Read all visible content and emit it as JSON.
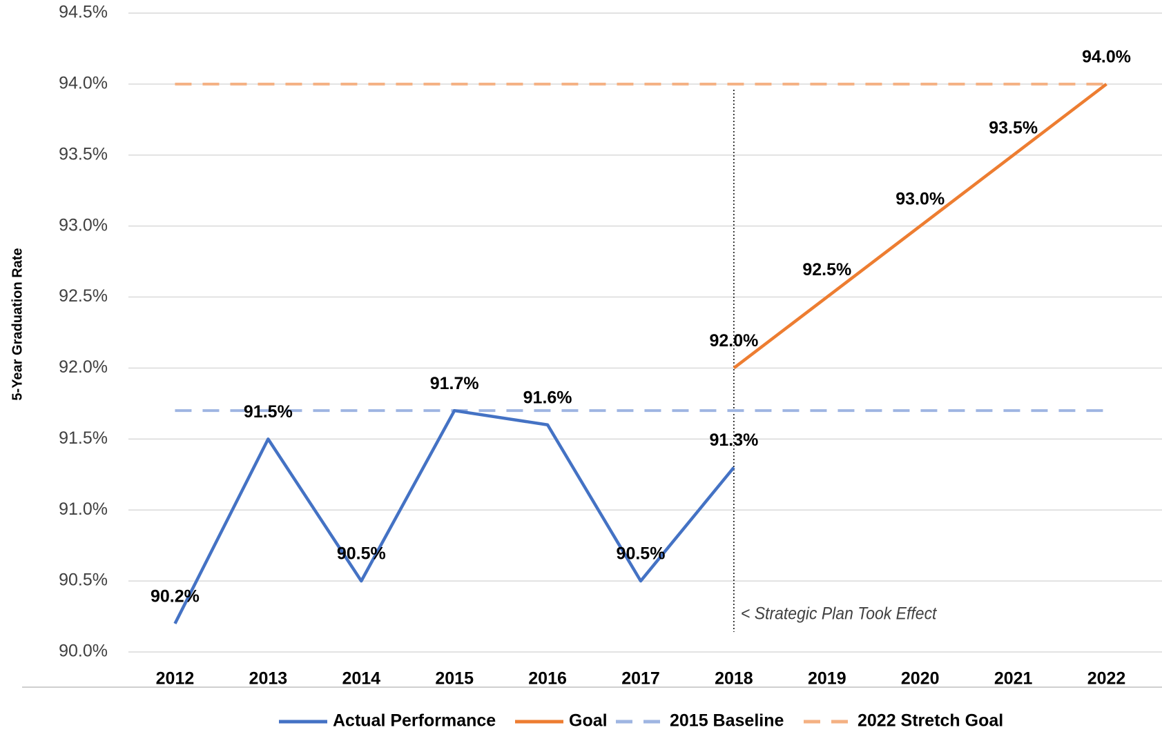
{
  "chart_data": {
    "type": "line",
    "y_label": "5-Year Graduation Rate",
    "categories": [
      "2012",
      "2013",
      "2014",
      "2015",
      "2016",
      "2017",
      "2018",
      "2019",
      "2020",
      "2021",
      "2022"
    ],
    "series": [
      {
        "name": "Actual Performance",
        "color": "#4472c4",
        "dashed": false,
        "values": [
          90.2,
          91.5,
          90.5,
          91.7,
          91.6,
          90.5,
          91.3,
          null,
          null,
          null,
          null
        ],
        "value_labels": [
          "90.2%",
          "91.5%",
          "90.5%",
          "91.7%",
          "91.6%",
          "90.5%",
          "91.3%",
          null,
          null,
          null,
          null
        ]
      },
      {
        "name": "Goal",
        "color": "#ed7d31",
        "dashed": false,
        "values": [
          null,
          null,
          null,
          null,
          null,
          null,
          92.0,
          92.5,
          93.0,
          93.5,
          94.0
        ],
        "value_labels": [
          null,
          null,
          null,
          null,
          null,
          null,
          "92.0%",
          "92.5%",
          "93.0%",
          "93.5%",
          "94.0%"
        ]
      },
      {
        "name": "2015 Baseline",
        "color": "#9fb5e2",
        "dashed": true,
        "values": [
          91.7,
          91.7,
          91.7,
          91.7,
          91.7,
          91.7,
          91.7,
          91.7,
          91.7,
          91.7,
          91.7
        ]
      },
      {
        "name": "2022 Stretch Goal",
        "color": "#f4b183",
        "dashed": true,
        "values": [
          94.0,
          94.0,
          94.0,
          94.0,
          94.0,
          94.0,
          94.0,
          94.0,
          94.0,
          94.0,
          94.0
        ]
      }
    ],
    "ylim": [
      90.0,
      94.5
    ],
    "yticks": [
      {
        "value": 90.0,
        "label": "90.0%"
      },
      {
        "value": 90.5,
        "label": "90.5%"
      },
      {
        "value": 91.0,
        "label": "91.0%"
      },
      {
        "value": 91.5,
        "label": "91.5%"
      },
      {
        "value": 92.0,
        "label": "92.0%"
      },
      {
        "value": 92.5,
        "label": "92.5%"
      },
      {
        "value": 93.0,
        "label": "93.0%"
      },
      {
        "value": 93.5,
        "label": "93.5%"
      },
      {
        "value": 94.0,
        "label": "94.0%"
      },
      {
        "value": 94.5,
        "label": "94.5%"
      }
    ],
    "grid": true,
    "legend": "bottom",
    "annotation": {
      "text": "< Strategic Plan Took Effect",
      "category": "2018"
    }
  }
}
